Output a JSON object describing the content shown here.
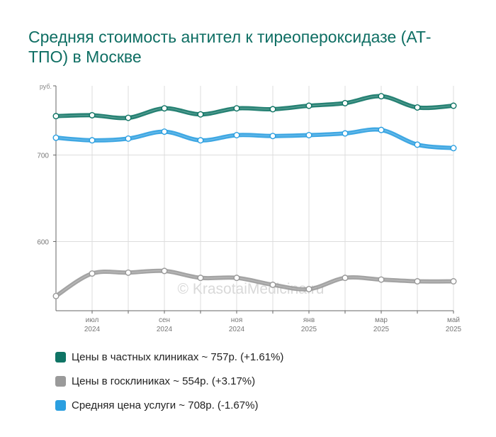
{
  "chart_data": {
    "type": "line",
    "title": "Средняя стоимость антител к тиреопероксидазе (АТ-ТПО) в Москве",
    "y_unit": "руб.",
    "ylim": [
      520,
      780
    ],
    "yticks": [
      600,
      700
    ],
    "x": [
      "2024-06",
      "2024-07",
      "2024-08",
      "2024-09",
      "2024-10",
      "2024-11",
      "2024-12",
      "2025-01",
      "2025-02",
      "2025-03",
      "2025-04",
      "2025-05"
    ],
    "x_ticks": [
      {
        "index": 1,
        "month": "июл",
        "year": "2024"
      },
      {
        "index": 3,
        "month": "сен",
        "year": "2024"
      },
      {
        "index": 5,
        "month": "ноя",
        "year": "2024"
      },
      {
        "index": 7,
        "month": "янв",
        "year": "2025"
      },
      {
        "index": 9,
        "month": "мар",
        "year": "2025"
      },
      {
        "index": 11,
        "month": "май",
        "year": "2025"
      }
    ],
    "grid": "vertical and horizontal",
    "legend_position": "bottom",
    "series": [
      {
        "name": "Цены в частных клиниках",
        "color": "#0f7465",
        "values": [
          745,
          746,
          743,
          754,
          747,
          754,
          753,
          757,
          760,
          768,
          755,
          757
        ]
      },
      {
        "name": "Цены в госклиниках",
        "color": "#9a9a9a",
        "values": [
          537,
          563,
          564,
          566,
          558,
          558,
          550,
          545,
          558,
          556,
          554,
          554
        ]
      },
      {
        "name": "Средняя цена услуги",
        "color": "#2b9fe0",
        "values": [
          720,
          717,
          719,
          727,
          717,
          723,
          722,
          723,
          725,
          729,
          712,
          708
        ]
      }
    ],
    "watermark": "© KrasotaiMedicina.ru"
  },
  "legend": [
    {
      "label": "Цены в частных клиниках ~ 757р. (+1.61%)",
      "color": "#0f7465"
    },
    {
      "label": "Цены в госклиниках ~ 554р. (+3.17%)",
      "color": "#9a9a9a"
    },
    {
      "label": "Средняя цена услуги ~ 708р. (-1.67%)",
      "color": "#2b9fe0"
    }
  ]
}
